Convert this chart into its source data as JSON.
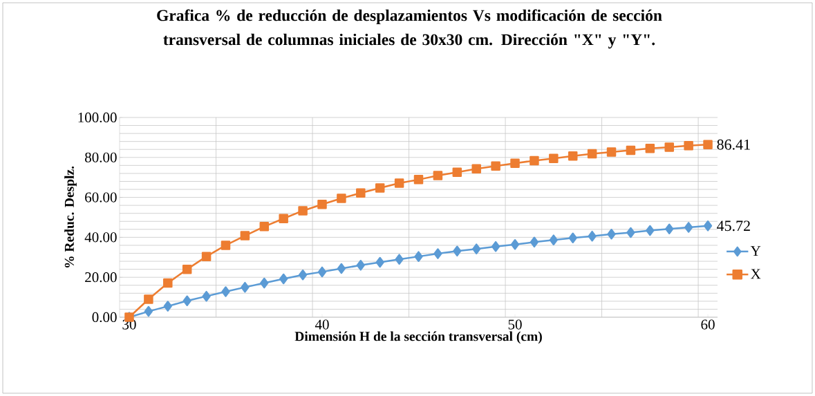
{
  "chart_data": {
    "type": "line",
    "title": "Grafica % de reducción de desplazamientos Vs modificación de sección transversal de columnas iniciales de 30x30 cm. Dirección \"X\" y \"Y\".",
    "xlabel": "Dimensión H de la sección transversal (cm)",
    "ylabel": "% Reduc. Desplz.",
    "x": [
      30,
      31,
      32,
      33,
      34,
      35,
      36,
      37,
      38,
      39,
      40,
      41,
      42,
      43,
      44,
      45,
      46,
      47,
      48,
      49,
      50,
      51,
      52,
      53,
      54,
      55,
      56,
      57,
      58,
      59,
      60
    ],
    "series": [
      {
        "name": "Y",
        "color": "#5b9bd5",
        "marker": "diamond",
        "values": [
          0,
          2.9,
          5.5,
          8.2,
          10.5,
          12.8,
          15.0,
          17.1,
          19.2,
          21.2,
          22.7,
          24.4,
          26.0,
          27.5,
          29.0,
          30.4,
          31.8,
          33.1,
          34.2,
          35.4,
          36.4,
          37.6,
          38.7,
          39.7,
          40.6,
          41.6,
          42.4,
          43.4,
          44.2,
          45.0,
          45.72
        ],
        "value_labels": [
          null,
          null,
          null,
          null,
          null,
          null,
          null,
          null,
          null,
          null,
          null,
          null,
          null,
          null,
          null,
          null,
          null,
          null,
          null,
          null,
          null,
          null,
          null,
          null,
          null,
          null,
          null,
          null,
          null,
          null,
          "45.72"
        ]
      },
      {
        "name": "X",
        "color": "#ed7d31",
        "marker": "square",
        "values": [
          0,
          9.0,
          17.1,
          24.0,
          30.4,
          36.0,
          40.8,
          45.4,
          49.4,
          53.3,
          56.5,
          59.5,
          62.2,
          64.7,
          67.1,
          68.9,
          70.9,
          72.6,
          74.3,
          75.7,
          77.1,
          78.4,
          79.5,
          80.7,
          81.8,
          82.7,
          83.6,
          84.5,
          85.1,
          85.9,
          86.41
        ],
        "value_labels": [
          null,
          null,
          null,
          null,
          null,
          null,
          null,
          null,
          null,
          null,
          null,
          null,
          null,
          null,
          null,
          null,
          null,
          null,
          null,
          null,
          null,
          null,
          null,
          null,
          null,
          null,
          null,
          null,
          null,
          null,
          "86.41"
        ]
      }
    ],
    "xlim": [
      29.5,
      60.5
    ],
    "xticks": [
      30,
      {
        "value": 34.5,
        "label": null
      },
      {
        "value": 39.5,
        "label": null
      },
      40,
      {
        "value": 44.5,
        "label": null
      },
      {
        "value": 49.5,
        "label": null
      },
      50,
      {
        "value": 54.5,
        "label": null
      },
      {
        "value": 59.5,
        "label": null
      },
      60
    ],
    "ylim": [
      0,
      100
    ],
    "yticks": [
      {
        "value": 0,
        "label": "0.00"
      },
      {
        "value": 4,
        "label": null
      },
      {
        "value": 8,
        "label": null
      },
      {
        "value": 12,
        "label": null
      },
      {
        "value": 16,
        "label": null
      },
      {
        "value": 20,
        "label": "20.00"
      },
      {
        "value": 24,
        "label": null
      },
      {
        "value": 28,
        "label": null
      },
      {
        "value": 32,
        "label": null
      },
      {
        "value": 36,
        "label": null
      },
      {
        "value": 40,
        "label": "40.00"
      },
      {
        "value": 44,
        "label": null
      },
      {
        "value": 48,
        "label": null
      },
      {
        "value": 52,
        "label": null
      },
      {
        "value": 56,
        "label": null
      },
      {
        "value": 60,
        "label": "60.00"
      },
      {
        "value": 64,
        "label": null
      },
      {
        "value": 68,
        "label": null
      },
      {
        "value": 72,
        "label": null
      },
      {
        "value": 76,
        "label": null
      },
      {
        "value": 80,
        "label": "80.00"
      },
      {
        "value": 84,
        "label": null
      },
      {
        "value": 88,
        "label": null
      },
      {
        "value": 92,
        "label": null
      },
      {
        "value": 96,
        "label": null
      },
      {
        "value": 100,
        "label": "100.00"
      }
    ],
    "grid": true,
    "legend": "right",
    "line_style": "solid"
  }
}
